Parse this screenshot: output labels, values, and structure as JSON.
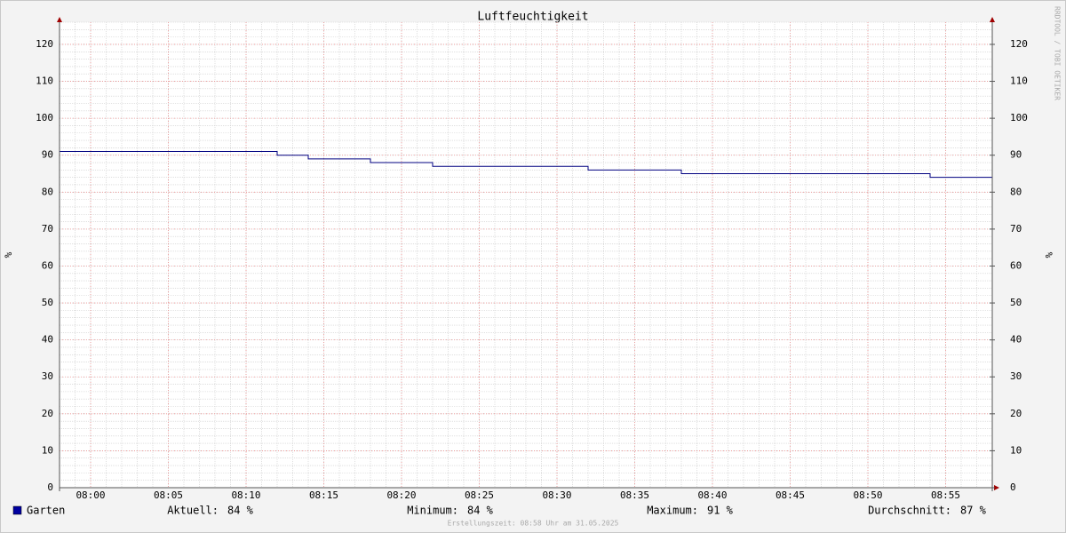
{
  "chart_data": {
    "type": "step",
    "title": "Luftfeuchtigkeit",
    "ylabel": "%",
    "y2label": "%",
    "watermark": "RRDTOOL / TOBI OETIKER",
    "footer": "Erstellungszeit: 08:58 Uhr am 31.05.2025",
    "xlim": [
      "07:58",
      "08:58"
    ],
    "xticks": [
      "08:00",
      "08:05",
      "08:10",
      "08:15",
      "08:20",
      "08:25",
      "08:30",
      "08:35",
      "08:40",
      "08:45",
      "08:50",
      "08:55"
    ],
    "ylim": [
      0,
      126
    ],
    "yticks": [
      0,
      10,
      20,
      30,
      40,
      50,
      60,
      70,
      80,
      90,
      100,
      110,
      120
    ],
    "y2lim": [
      0,
      126
    ],
    "y2ticks": [
      0,
      10,
      20,
      30,
      40,
      50,
      60,
      70,
      80,
      90,
      100,
      110,
      120
    ],
    "grid": true,
    "minor_grid": {
      "x": 1,
      "y": 2
    },
    "series": [
      {
        "name": "Garten",
        "color": "#000080",
        "legend_color": "#0000a0",
        "x": [
          "07:58",
          "08:12",
          "08:14",
          "08:18",
          "08:22",
          "08:32",
          "08:38",
          "08:54"
        ],
        "values": [
          91,
          90,
          89,
          88,
          87,
          86,
          85,
          84
        ]
      }
    ],
    "stats": [
      {
        "label": "Aktuell:",
        "value_label": "84 %"
      },
      {
        "label": "Minimum:",
        "value_label": "84 %"
      },
      {
        "label": "Maximum:",
        "value_label": "91 %"
      },
      {
        "label": "Durchschnitt:",
        "value_label": "87 %"
      }
    ]
  }
}
